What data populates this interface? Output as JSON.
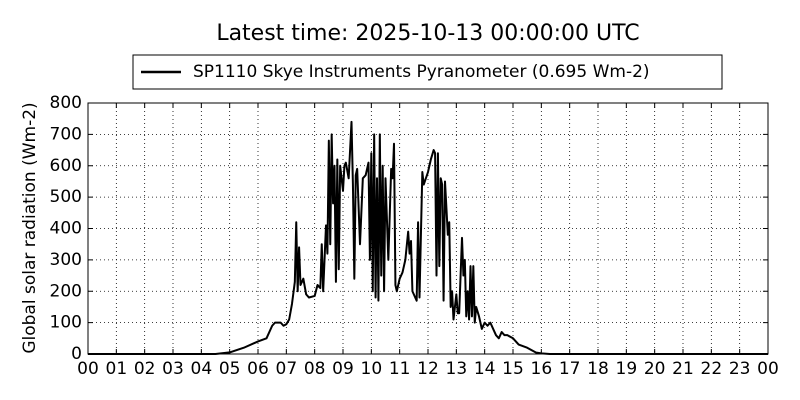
{
  "chart_data": {
    "type": "line",
    "title": "Latest time: 2025-10-13 00:00:00 UTC",
    "y_label": "Global solar radiation (Wm-2)",
    "legend": "upper center",
    "grid": true,
    "xlim": [
      0,
      24
    ],
    "ylim": [
      0,
      800
    ],
    "xticks": [
      {
        "value": 0,
        "label": "00"
      },
      {
        "value": 1,
        "label": "01"
      },
      {
        "value": 2,
        "label": "02"
      },
      {
        "value": 3,
        "label": "03"
      },
      {
        "value": 4,
        "label": "04"
      },
      {
        "value": 5,
        "label": "05"
      },
      {
        "value": 6,
        "label": "06"
      },
      {
        "value": 7,
        "label": "07"
      },
      {
        "value": 8,
        "label": "08"
      },
      {
        "value": 9,
        "label": "09"
      },
      {
        "value": 10,
        "label": "10"
      },
      {
        "value": 11,
        "label": "11"
      },
      {
        "value": 12,
        "label": "12"
      },
      {
        "value": 13,
        "label": "13"
      },
      {
        "value": 14,
        "label": "14"
      },
      {
        "value": 15,
        "label": "15"
      },
      {
        "value": 16,
        "label": "16"
      },
      {
        "value": 17,
        "label": "17"
      },
      {
        "value": 18,
        "label": "18"
      },
      {
        "value": 19,
        "label": "19"
      },
      {
        "value": 20,
        "label": "20"
      },
      {
        "value": 21,
        "label": "21"
      },
      {
        "value": 22,
        "label": "22"
      },
      {
        "value": 23,
        "label": "23"
      },
      {
        "value": 24,
        "label": "00"
      }
    ],
    "yticks": [
      0,
      100,
      200,
      300,
      400,
      500,
      600,
      700,
      800
    ],
    "x": [
      0,
      4.5,
      5.0,
      5.5,
      6.0,
      6.3,
      6.5,
      6.6,
      6.8,
      6.9,
      7.0,
      7.1,
      7.2,
      7.3,
      7.35,
      7.4,
      7.45,
      7.5,
      7.6,
      7.7,
      7.8,
      8.0,
      8.1,
      8.2,
      8.25,
      8.3,
      8.4,
      8.45,
      8.5,
      8.55,
      8.6,
      8.65,
      8.7,
      8.75,
      8.8,
      8.85,
      8.9,
      9.0,
      9.05,
      9.1,
      9.2,
      9.3,
      9.35,
      9.4,
      9.45,
      9.5,
      9.6,
      9.7,
      9.8,
      9.9,
      9.95,
      10.0,
      10.05,
      10.1,
      10.15,
      10.2,
      10.25,
      10.3,
      10.35,
      10.4,
      10.45,
      10.5,
      10.6,
      10.7,
      10.75,
      10.8,
      10.85,
      10.9,
      11.0,
      11.1,
      11.2,
      11.3,
      11.35,
      11.4,
      11.45,
      11.5,
      11.6,
      11.65,
      11.7,
      11.8,
      11.85,
      12.0,
      12.1,
      12.2,
      12.25,
      12.3,
      12.35,
      12.4,
      12.45,
      12.5,
      12.55,
      12.6,
      12.7,
      12.75,
      12.8,
      12.85,
      12.9,
      13.0,
      13.05,
      13.1,
      13.2,
      13.25,
      13.3,
      13.35,
      13.4,
      13.45,
      13.5,
      13.55,
      13.6,
      13.65,
      13.7,
      13.8,
      13.9,
      14.0,
      14.1,
      14.2,
      14.3,
      14.4,
      14.5,
      14.6,
      14.7,
      14.8,
      15.0,
      15.2,
      15.5,
      15.8,
      16.0,
      16.3,
      24
    ],
    "series": [
      {
        "name": "SP1110 Skye Instruments Pyranometer (0.695 Wm-2)",
        "color": "#000000",
        "values": [
          0,
          0,
          5,
          20,
          40,
          50,
          90,
          100,
          100,
          90,
          95,
          110,
          160,
          230,
          420,
          200,
          340,
          220,
          240,
          190,
          180,
          185,
          220,
          210,
          350,
          200,
          410,
          320,
          680,
          350,
          700,
          480,
          600,
          230,
          620,
          270,
          600,
          520,
          600,
          610,
          560,
          740,
          540,
          240,
          570,
          590,
          350,
          560,
          570,
          610,
          300,
          640,
          200,
          700,
          180,
          560,
          170,
          700,
          250,
          600,
          200,
          560,
          300,
          590,
          560,
          670,
          220,
          200,
          240,
          260,
          300,
          390,
          320,
          360,
          200,
          190,
          170,
          420,
          180,
          580,
          540,
          580,
          620,
          650,
          640,
          250,
          640,
          280,
          560,
          540,
          170,
          550,
          380,
          420,
          150,
          200,
          110,
          190,
          130,
          130,
          370,
          250,
          300,
          120,
          200,
          110,
          280,
          120,
          280,
          100,
          150,
          120,
          80,
          100,
          90,
          100,
          80,
          60,
          50,
          70,
          60,
          60,
          50,
          30,
          20,
          5,
          2,
          0,
          0
        ]
      }
    ]
  }
}
